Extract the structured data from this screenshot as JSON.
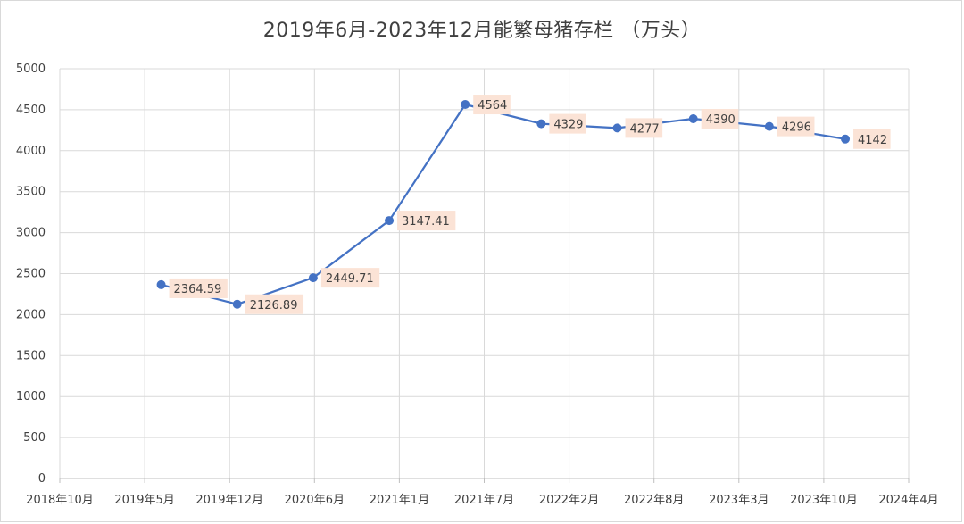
{
  "chart_data": {
    "type": "line",
    "title": "2019年6月-2023年12月能繁母猪存栏 （万头）",
    "x_categories": [
      "2018年10月",
      "2019年5月",
      "2019年12月",
      "2020年6月",
      "2021年1月",
      "2021年7月",
      "2022年2月",
      "2022年8月",
      "2023年3月",
      "2023年10月",
      "2024年4月"
    ],
    "series": [
      {
        "color": "#4472c4",
        "points": [
          {
            "x": "2019年6月",
            "y": 2364.59,
            "label": "2364.59"
          },
          {
            "x": "2019年12月",
            "y": 2126.89,
            "label": "2126.89"
          },
          {
            "x": "2020年6月",
            "y": 2449.71,
            "label": "2449.71"
          },
          {
            "x": "2020年12月",
            "y": 3147.41,
            "label": "3147.41"
          },
          {
            "x": "2021年6月",
            "y": 4564,
            "label": "4564"
          },
          {
            "x": "2021年12月",
            "y": 4329,
            "label": "4329"
          },
          {
            "x": "2022年6月",
            "y": 4277,
            "label": "4277"
          },
          {
            "x": "2022年12月",
            "y": 4390,
            "label": "4390"
          },
          {
            "x": "2023年6月",
            "y": 4296,
            "label": "4296"
          },
          {
            "x": "2023年12月",
            "y": 4142,
            "label": "4142"
          }
        ]
      }
    ],
    "y_ticks": [
      "0",
      "500",
      "1000",
      "1500",
      "2000",
      "2500",
      "3000",
      "3500",
      "4000",
      "4500",
      "5000"
    ],
    "ylim": [
      0,
      5000
    ],
    "grid": "vertical and horizontal",
    "data_label_bg": "#fbe3d6",
    "legend": "none"
  }
}
